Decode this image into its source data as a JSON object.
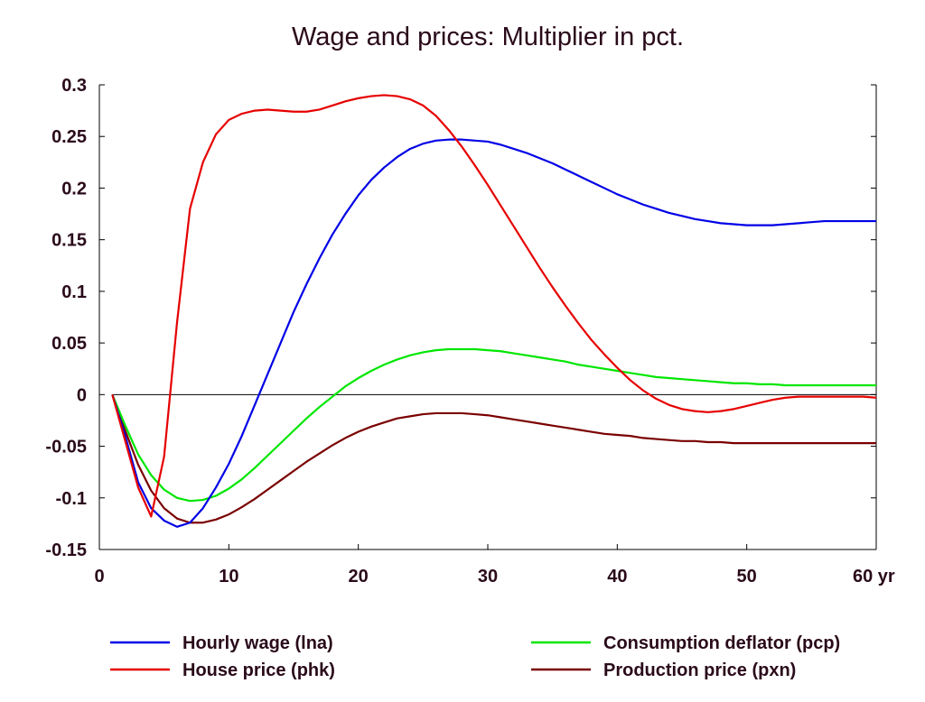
{
  "chart_data": {
    "type": "line",
    "title": "Wage and prices: Multiplier in pct.",
    "x_axis": {
      "ticks": [
        0,
        10,
        20,
        30,
        40,
        50,
        60
      ],
      "tick_labels": [
        "0",
        "10",
        "20",
        "30",
        "40",
        "50",
        "60 yr"
      ],
      "range": [
        0,
        60
      ]
    },
    "y_axis": {
      "ticks": [
        -0.15,
        -0.1,
        -0.05,
        0,
        0.05,
        0.1,
        0.15,
        0.2,
        0.25,
        0.3
      ],
      "tick_labels": [
        "-0.15",
        "-0.1",
        "-0.05",
        "0",
        "0.05",
        "0.1",
        "0.15",
        "0.2",
        "0.25",
        "0.3"
      ],
      "range": [
        -0.15,
        0.3
      ]
    },
    "grid": false,
    "legend_position": "bottom",
    "series": [
      {
        "name": "Hourly wage (lna)",
        "color": "#0000e6",
        "x": [
          1,
          2,
          3,
          4,
          5,
          6,
          7,
          8,
          9,
          10,
          11,
          12,
          13,
          14,
          15,
          16,
          17,
          18,
          19,
          20,
          21,
          22,
          23,
          24,
          25,
          26,
          27,
          28,
          29,
          30,
          31,
          32,
          33,
          34,
          35,
          36,
          37,
          38,
          39,
          40,
          41,
          42,
          43,
          44,
          45,
          46,
          47,
          48,
          49,
          50,
          51,
          52,
          53,
          54,
          55,
          56,
          57,
          58,
          59,
          60
        ],
        "y": [
          0,
          -0.04,
          -0.085,
          -0.11,
          -0.122,
          -0.128,
          -0.124,
          -0.11,
          -0.09,
          -0.067,
          -0.04,
          -0.01,
          0.02,
          0.05,
          0.08,
          0.107,
          0.132,
          0.155,
          0.175,
          0.193,
          0.208,
          0.22,
          0.23,
          0.238,
          0.243,
          0.246,
          0.247,
          0.247,
          0.246,
          0.245,
          0.242,
          0.238,
          0.234,
          0.229,
          0.224,
          0.218,
          0.212,
          0.206,
          0.2,
          0.194,
          0.189,
          0.184,
          0.18,
          0.176,
          0.173,
          0.17,
          0.168,
          0.166,
          0.165,
          0.164,
          0.164,
          0.164,
          0.165,
          0.166,
          0.167,
          0.168,
          0.168,
          0.168,
          0.168,
          0.168
        ]
      },
      {
        "name": "House price (phk)",
        "color": "#e60000",
        "x": [
          1,
          2,
          3,
          4,
          5,
          6,
          7,
          8,
          9,
          10,
          11,
          12,
          13,
          14,
          15,
          16,
          17,
          18,
          19,
          20,
          21,
          22,
          23,
          24,
          25,
          26,
          27,
          28,
          29,
          30,
          31,
          32,
          33,
          34,
          35,
          36,
          37,
          38,
          39,
          40,
          41,
          42,
          43,
          44,
          45,
          46,
          47,
          48,
          49,
          50,
          51,
          52,
          53,
          54,
          55,
          56,
          57,
          58,
          59,
          60
        ],
        "y": [
          0,
          -0.045,
          -0.09,
          -0.118,
          -0.06,
          0.07,
          0.18,
          0.225,
          0.252,
          0.266,
          0.272,
          0.275,
          0.276,
          0.275,
          0.274,
          0.274,
          0.276,
          0.28,
          0.284,
          0.287,
          0.289,
          0.29,
          0.289,
          0.286,
          0.28,
          0.27,
          0.256,
          0.24,
          0.222,
          0.203,
          0.183,
          0.163,
          0.143,
          0.123,
          0.104,
          0.086,
          0.069,
          0.053,
          0.039,
          0.026,
          0.014,
          0.004,
          -0.004,
          -0.01,
          -0.014,
          -0.016,
          -0.017,
          -0.016,
          -0.014,
          -0.011,
          -0.008,
          -0.005,
          -0.003,
          -0.002,
          -0.002,
          -0.002,
          -0.002,
          -0.002,
          -0.002,
          -0.003
        ]
      },
      {
        "name": "Consumption deflator (pcp)",
        "color": "#00e600",
        "x": [
          1,
          2,
          3,
          4,
          5,
          6,
          7,
          8,
          9,
          10,
          11,
          12,
          13,
          14,
          15,
          16,
          17,
          18,
          19,
          20,
          21,
          22,
          23,
          24,
          25,
          26,
          27,
          28,
          29,
          30,
          31,
          32,
          33,
          34,
          35,
          36,
          37,
          38,
          39,
          40,
          41,
          42,
          43,
          44,
          45,
          46,
          47,
          48,
          49,
          50,
          51,
          52,
          53,
          54,
          55,
          56,
          57,
          58,
          59,
          60
        ],
        "y": [
          0,
          -0.03,
          -0.058,
          -0.078,
          -0.092,
          -0.1,
          -0.103,
          -0.102,
          -0.098,
          -0.091,
          -0.082,
          -0.071,
          -0.059,
          -0.047,
          -0.035,
          -0.023,
          -0.012,
          -0.002,
          0.008,
          0.016,
          0.023,
          0.029,
          0.034,
          0.038,
          0.041,
          0.043,
          0.044,
          0.044,
          0.044,
          0.043,
          0.042,
          0.04,
          0.038,
          0.036,
          0.034,
          0.032,
          0.029,
          0.027,
          0.025,
          0.023,
          0.021,
          0.019,
          0.017,
          0.016,
          0.015,
          0.014,
          0.013,
          0.012,
          0.011,
          0.011,
          0.01,
          0.01,
          0.009,
          0.009,
          0.009,
          0.009,
          0.009,
          0.009,
          0.009,
          0.009
        ]
      },
      {
        "name": "Production price (pxn)",
        "color": "#7a0000",
        "x": [
          1,
          2,
          3,
          4,
          5,
          6,
          7,
          8,
          9,
          10,
          11,
          12,
          13,
          14,
          15,
          16,
          17,
          18,
          19,
          20,
          21,
          22,
          23,
          24,
          25,
          26,
          27,
          28,
          29,
          30,
          31,
          32,
          33,
          34,
          35,
          36,
          37,
          38,
          39,
          40,
          41,
          42,
          43,
          44,
          45,
          46,
          47,
          48,
          49,
          50,
          51,
          52,
          53,
          54,
          55,
          56,
          57,
          58,
          59,
          60
        ],
        "y": [
          0,
          -0.035,
          -0.068,
          -0.093,
          -0.11,
          -0.12,
          -0.124,
          -0.124,
          -0.121,
          -0.116,
          -0.109,
          -0.101,
          -0.092,
          -0.083,
          -0.074,
          -0.065,
          -0.057,
          -0.049,
          -0.042,
          -0.036,
          -0.031,
          -0.027,
          -0.023,
          -0.021,
          -0.019,
          -0.018,
          -0.018,
          -0.018,
          -0.019,
          -0.02,
          -0.022,
          -0.024,
          -0.026,
          -0.028,
          -0.03,
          -0.032,
          -0.034,
          -0.036,
          -0.038,
          -0.039,
          -0.04,
          -0.042,
          -0.043,
          -0.044,
          -0.045,
          -0.045,
          -0.046,
          -0.046,
          -0.047,
          -0.047,
          -0.047,
          -0.047,
          -0.047,
          -0.047,
          -0.047,
          -0.047,
          -0.047,
          -0.047,
          -0.047,
          -0.047
        ]
      }
    ]
  }
}
